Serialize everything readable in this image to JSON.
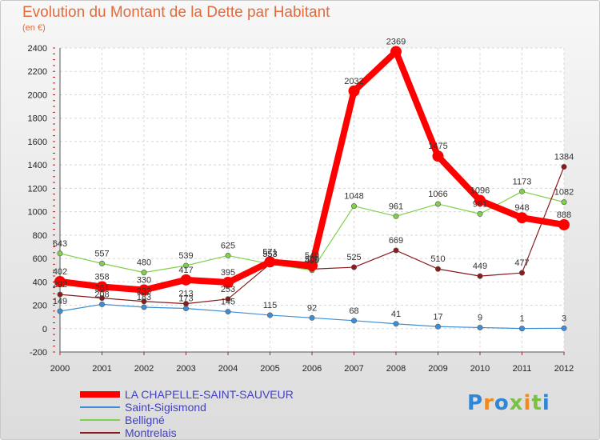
{
  "header": {
    "title": "Evolution du Montant de la Dette par Habitant",
    "subtitle": "(en €)"
  },
  "logo": {
    "letters": [
      "P",
      "r",
      "o",
      "x",
      "i",
      "t",
      "i"
    ],
    "colors": [
      "#2e86d6",
      "#f08a1e",
      "#2e86d6",
      "#7ac143",
      "#f08a1e",
      "#7ac143",
      "#2e86d6"
    ]
  },
  "chart_data": {
    "type": "line",
    "title": "Evolution du Montant de la Dette par Habitant",
    "subtitle": "(en €)",
    "categories": [
      "2000",
      "2001",
      "2002",
      "2003",
      "2004",
      "2005",
      "2006",
      "2007",
      "2008",
      "2009",
      "2010",
      "2011",
      "2012"
    ],
    "ylim": [
      -200,
      2400
    ],
    "yticks": [
      -200,
      0,
      200,
      400,
      600,
      800,
      1000,
      1200,
      1400,
      1600,
      1800,
      2000,
      2200,
      2400
    ],
    "grid": true,
    "legend_position": "bottom-left",
    "series": [
      {
        "name": "LA CHAPELLE-SAINT-SAUVEUR",
        "color": "#ff0000",
        "values": [
          402,
          358,
          330,
          417,
          395,
          571,
          540,
          2032,
          2369,
          1475,
          1096,
          948,
          888
        ],
        "width": 8,
        "marker": 7
      },
      {
        "name": "Saint-Sigismond",
        "color": "#3d8ed6",
        "values": [
          149,
          208,
          183,
          173,
          145,
          115,
          92,
          68,
          41,
          17,
          9,
          1,
          3
        ],
        "width": 1.2,
        "marker": 3.2
      },
      {
        "name": "Belligné",
        "color": "#7fd04a",
        "values": [
          643,
          557,
          480,
          539,
          625,
          553,
          499,
          1048,
          961,
          1066,
          981,
          1173,
          1082
        ],
        "width": 1.2,
        "marker": 3.2
      },
      {
        "name": "Montrelais",
        "color": "#8b1a1a",
        "values": [
          292,
          261,
          233,
          213,
          253,
          553,
          509,
          525,
          669,
          510,
          449,
          477,
          1384
        ],
        "width": 1.2,
        "marker": 3.2
      }
    ]
  }
}
